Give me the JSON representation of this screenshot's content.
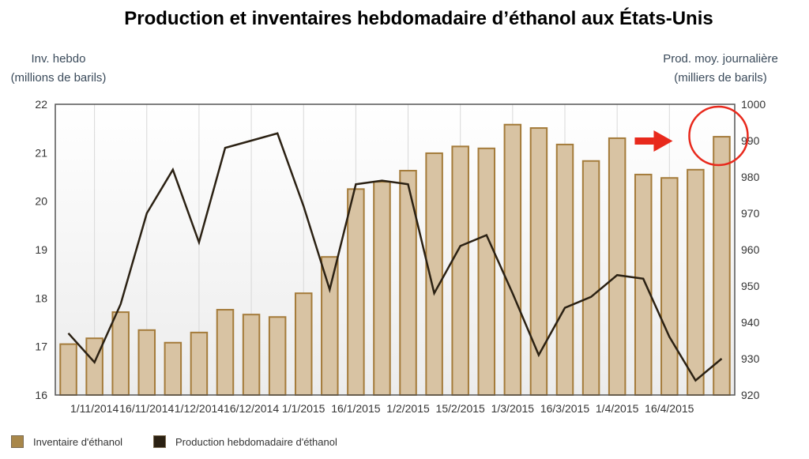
{
  "title": "Production et inventaires hebdomadaire d’éthanol aux États-Unis",
  "left_axis": {
    "line1": "Inv. hebdo",
    "line2": "(millions de barils)"
  },
  "right_axis": {
    "line1": "Prod. moy. journalière",
    "line2": "(milliers de barils)"
  },
  "legend": [
    {
      "label": "Inventaire d'éthanol",
      "color": "#a8874a"
    },
    {
      "label": "Production hebdomadaire d'éthanol",
      "color": "#2b2113"
    }
  ],
  "colors": {
    "bar_fill": "#d8c3a3",
    "bar_stroke": "#a47b3a",
    "line": "#2b2113",
    "plot_bg_top": "#ffffff",
    "plot_bg_bottom": "#ececec",
    "annotation": "#e8291c"
  },
  "chart_data": {
    "type": "bar",
    "x_tick_labels": [
      "1/11/2014",
      "16/11/2014",
      "1/12/2014",
      "16/12/2014",
      "1/1/2015",
      "16/1/2015",
      "1/2/2015",
      "15/2/2015",
      "1/3/2015",
      "16/3/2015",
      "1/4/2015",
      "16/4/2015"
    ],
    "left_ylim": [
      16,
      22
    ],
    "left_yticks": [
      16,
      17,
      18,
      19,
      20,
      21,
      22
    ],
    "right_ylim": [
      920,
      1000
    ],
    "right_yticks": [
      920,
      930,
      940,
      950,
      960,
      970,
      980,
      990,
      1000
    ],
    "grid": "vertical",
    "legend_position": "bottom-left",
    "series": [
      {
        "name": "Inventaire d'éthanol",
        "kind": "bar",
        "axis": "left",
        "values": [
          17.05,
          17.17,
          17.71,
          17.34,
          17.08,
          17.29,
          17.76,
          17.66,
          17.61,
          18.1,
          18.85,
          20.25,
          20.4,
          20.63,
          20.99,
          21.13,
          21.09,
          21.58,
          21.51,
          21.17,
          20.83,
          21.3,
          20.55,
          20.48,
          20.65,
          21.33
        ]
      },
      {
        "name": "Production hebdomadaire d'éthanol",
        "kind": "line",
        "axis": "right",
        "values": [
          937,
          929,
          945,
          970,
          982,
          962,
          988,
          990,
          992,
          972,
          949,
          978,
          979,
          978,
          948,
          961,
          964,
          948,
          931,
          944,
          947,
          953,
          952,
          936,
          924,
          930
        ]
      }
    ],
    "annotations": [
      "right-arrow",
      "circle-highlight"
    ]
  }
}
